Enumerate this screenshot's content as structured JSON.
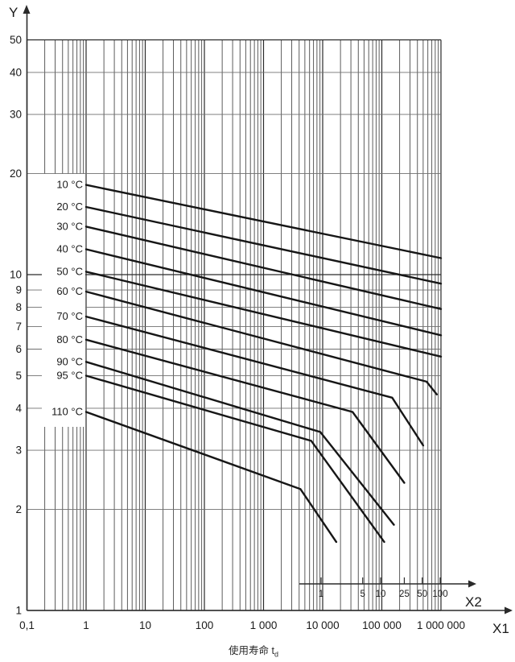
{
  "colors": {
    "background": "#ffffff",
    "curve": "#161616",
    "grid_minor_v": "#4a4a4a",
    "grid_minor_h": "#6f6f6f",
    "grid_major": "#2a2a2a",
    "text": "#1a1a1a"
  },
  "chart_data": {
    "type": "line",
    "title": "",
    "x_scale": "log",
    "y_scale": "log",
    "grid": true,
    "x_axis": {
      "title": "X1",
      "range": [
        0.1,
        1000000
      ],
      "ticks": [
        {
          "v": 0.1,
          "label": "0,1"
        },
        {
          "v": 1,
          "label": "1"
        },
        {
          "v": 10,
          "label": "10"
        },
        {
          "v": 100,
          "label": "100"
        },
        {
          "v": 1000,
          "label": "1 000"
        },
        {
          "v": 10000,
          "label": "10 000"
        },
        {
          "v": 100000,
          "label": "100 000"
        },
        {
          "v": 1000000,
          "label": "1 000 000"
        }
      ],
      "caption": {
        "text": "使用寿命",
        "symbol": "t",
        "subscript": "d"
      }
    },
    "x2_axis": {
      "title": "X2",
      "ticks": [
        {
          "v": 1,
          "label": "1"
        },
        {
          "v": 5,
          "label": "5"
        },
        {
          "v": 10,
          "label": "10"
        },
        {
          "v": 25,
          "label": "25"
        },
        {
          "v": 50,
          "label": "50"
        },
        {
          "v": 100,
          "label": "100"
        }
      ]
    },
    "y_axis": {
      "title": "Y",
      "range": [
        1,
        50
      ],
      "ticks": [
        {
          "v": 50,
          "label": "50"
        },
        {
          "v": 40,
          "label": "40"
        },
        {
          "v": 30,
          "label": "30"
        },
        {
          "v": 20,
          "label": "20"
        },
        {
          "v": 10,
          "label": "10"
        },
        {
          "v": 9,
          "label": "9"
        },
        {
          "v": 8,
          "label": "8"
        },
        {
          "v": 7,
          "label": "7"
        },
        {
          "v": 6,
          "label": "6"
        },
        {
          "v": 5,
          "label": "5"
        },
        {
          "v": 4,
          "label": "4"
        },
        {
          "v": 3,
          "label": "3"
        },
        {
          "v": 2,
          "label": "2"
        },
        {
          "v": 1,
          "label": "1"
        }
      ]
    },
    "legend_position": "left-inline",
    "series": [
      {
        "name": "10 °C",
        "points": [
          [
            1,
            18.5
          ],
          [
            1000000,
            11.2
          ]
        ]
      },
      {
        "name": "20 °C",
        "points": [
          [
            1,
            15.9
          ],
          [
            1000000,
            9.4
          ]
        ]
      },
      {
        "name": "30 °C",
        "points": [
          [
            1,
            13.9
          ],
          [
            1000000,
            7.9
          ]
        ]
      },
      {
        "name": "40 °C",
        "points": [
          [
            1,
            11.9
          ],
          [
            1000000,
            6.6
          ]
        ]
      },
      {
        "name": "50 °C",
        "points": [
          [
            1,
            10.2
          ],
          [
            1000000,
            5.7
          ]
        ]
      },
      {
        "name": "60 °C",
        "points": [
          [
            1,
            8.9
          ],
          [
            570000,
            4.8
          ],
          [
            850000,
            4.4
          ]
        ]
      },
      {
        "name": "70 °C",
        "points": [
          [
            1,
            7.5
          ],
          [
            150000,
            4.3
          ],
          [
            500000,
            3.1
          ]
        ]
      },
      {
        "name": "80 °C",
        "points": [
          [
            1,
            6.4
          ],
          [
            32000,
            3.9
          ],
          [
            240000,
            2.4
          ]
        ]
      },
      {
        "name": "90 °C",
        "points": [
          [
            1,
            5.5
          ],
          [
            9100,
            3.4
          ],
          [
            160000,
            1.8
          ]
        ]
      },
      {
        "name": "95 °C",
        "points": [
          [
            1,
            5.0
          ],
          [
            6400,
            3.2
          ],
          [
            110000,
            1.6
          ]
        ]
      },
      {
        "name": "110 °C",
        "points": [
          [
            1,
            3.9
          ],
          [
            4200,
            2.3
          ],
          [
            17000,
            1.6
          ]
        ]
      }
    ]
  }
}
